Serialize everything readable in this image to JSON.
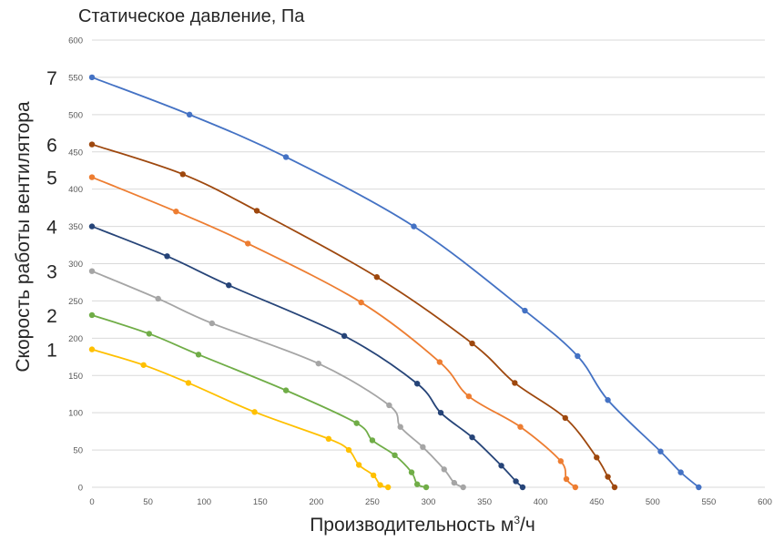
{
  "chart_data": {
    "type": "line",
    "title": "Статическое давление, Па",
    "ylabel": "Скорость работы вентилятора",
    "xlabel": "Производительность м",
    "xlabel_sup": "3",
    "xlabel_tail": "/ч",
    "xlim": [
      0,
      600
    ],
    "ylim": [
      0,
      600
    ],
    "xticks": [
      0,
      50,
      100,
      150,
      200,
      250,
      300,
      350,
      400,
      450,
      500,
      550,
      600
    ],
    "yticks": [
      0,
      50,
      100,
      150,
      200,
      250,
      300,
      350,
      400,
      450,
      500,
      550,
      600
    ],
    "grid": "horizontal",
    "speed_labels": [
      {
        "text": "7",
        "level": 550
      },
      {
        "text": "6",
        "level": 460
      },
      {
        "text": "5",
        "level": 416
      },
      {
        "text": "4",
        "level": 350
      },
      {
        "text": "3",
        "level": 290
      },
      {
        "text": "2",
        "level": 231
      },
      {
        "text": "1",
        "level": 185
      }
    ],
    "series": [
      {
        "color": "#4472C4",
        "points": [
          [
            0,
            550
          ],
          [
            87,
            500
          ],
          [
            173,
            443
          ],
          [
            287,
            350
          ],
          [
            386,
            237
          ],
          [
            433,
            176
          ],
          [
            460,
            117
          ],
          [
            507,
            48
          ],
          [
            525,
            20
          ],
          [
            541,
            0
          ]
        ]
      },
      {
        "color": "#9E480E",
        "points": [
          [
            0,
            460
          ],
          [
            81,
            420
          ],
          [
            147,
            371
          ],
          [
            254,
            282
          ],
          [
            339,
            193
          ],
          [
            377,
            140
          ],
          [
            422,
            93
          ],
          [
            450,
            40
          ],
          [
            460,
            14
          ],
          [
            466,
            0
          ]
        ]
      },
      {
        "color": "#ED7D31",
        "points": [
          [
            0,
            416
          ],
          [
            75,
            370
          ],
          [
            139,
            327
          ],
          [
            240,
            248
          ],
          [
            310,
            168
          ],
          [
            336,
            122
          ],
          [
            382,
            81
          ],
          [
            418,
            35
          ],
          [
            423,
            11
          ],
          [
            431,
            0
          ]
        ]
      },
      {
        "color": "#264478",
        "points": [
          [
            0,
            350
          ],
          [
            67,
            310
          ],
          [
            122,
            271
          ],
          [
            225,
            203
          ],
          [
            290,
            139
          ],
          [
            311,
            100
          ],
          [
            339,
            67
          ],
          [
            365,
            29
          ],
          [
            378,
            8
          ],
          [
            384,
            0
          ]
        ]
      },
      {
        "color": "#A5A5A5",
        "points": [
          [
            0,
            290
          ],
          [
            59,
            253
          ],
          [
            107,
            220
          ],
          [
            202,
            166
          ],
          [
            265,
            110
          ],
          [
            275,
            81
          ],
          [
            295,
            54
          ],
          [
            314,
            24
          ],
          [
            323,
            6
          ],
          [
            331,
            0
          ]
        ]
      },
      {
        "color": "#70AD47",
        "points": [
          [
            0,
            231
          ],
          [
            51,
            206
          ],
          [
            95,
            178
          ],
          [
            173,
            130
          ],
          [
            236,
            86
          ],
          [
            250,
            63
          ],
          [
            270,
            43
          ],
          [
            285,
            20
          ],
          [
            290,
            4
          ],
          [
            298,
            0
          ]
        ]
      },
      {
        "color": "#FFC000",
        "points": [
          [
            0,
            185
          ],
          [
            46,
            164
          ],
          [
            86,
            140
          ],
          [
            145,
            101
          ],
          [
            211,
            65
          ],
          [
            229,
            50
          ],
          [
            238,
            30
          ],
          [
            251,
            16
          ],
          [
            257,
            3
          ],
          [
            264,
            0
          ]
        ]
      }
    ]
  }
}
